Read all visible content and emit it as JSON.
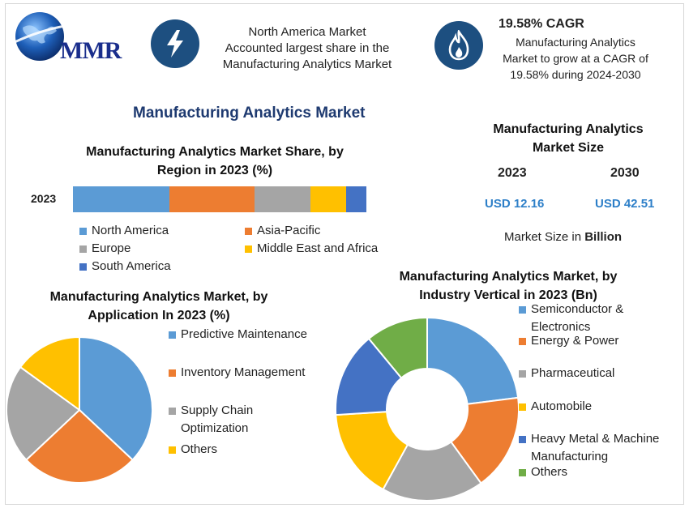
{
  "header": {
    "logo_text": "MMR",
    "box1_text_lines": [
      "North America Market",
      "Accounted largest share in the",
      "Manufacturing Analytics Market"
    ],
    "box2_title": "19.58% CAGR",
    "box2_text_lines": [
      "Manufacturing Analytics",
      "Market to grow at a CAGR of",
      "19.58% during 2024-2030"
    ]
  },
  "main_title": "Manufacturing Analytics Market",
  "market_size": {
    "title_lines": [
      "Manufacturing Analytics",
      "Market Size"
    ],
    "year1": "2023",
    "year2": "2030",
    "value1": "USD 12.16",
    "value2": "USD 42.51",
    "note_prefix": "Market Size in ",
    "note_bold": "Billion"
  },
  "colors": {
    "blue": "#5b9bd5",
    "orange": "#ed7d31",
    "gray": "#a5a5a5",
    "yellow": "#ffc000",
    "dark_blue": "#4472c4",
    "green": "#70ad47",
    "badge": "#1d4f80"
  },
  "chart_data": [
    {
      "type": "bar",
      "title_lines": [
        "Manufacturing Analytics Market Share, by",
        "Region in 2023 (%)"
      ],
      "categories": [
        "2023"
      ],
      "orientation": "horizontal-stacked",
      "series": [
        {
          "name": "North America",
          "values": [
            33
          ]
        },
        {
          "name": "Asia-Pacific",
          "values": [
            29
          ]
        },
        {
          "name": "Europe",
          "values": [
            19
          ]
        },
        {
          "name": "Middle East and Africa",
          "values": [
            12
          ]
        },
        {
          "name": "South America",
          "values": [
            7
          ]
        }
      ]
    },
    {
      "type": "pie",
      "title_lines": [
        "Manufacturing Analytics Market, by",
        "Application In 2023 (%)"
      ],
      "slices": [
        {
          "label_lines": [
            "Predictive Maintenance"
          ],
          "value": 37
        },
        {
          "label_lines": [
            "Inventory Management"
          ],
          "value": 26
        },
        {
          "label_lines": [
            "Supply Chain",
            "Optimization"
          ],
          "value": 22
        },
        {
          "label_lines": [
            "Others"
          ],
          "value": 15
        }
      ]
    },
    {
      "type": "pie",
      "subtype": "donut",
      "title_lines": [
        "Manufacturing Analytics Market, by",
        "Industry Vertical in 2023 (Bn)"
      ],
      "slices": [
        {
          "label_lines": [
            "Semiconductor &",
            "Electronics"
          ],
          "value": 23
        },
        {
          "label_lines": [
            "Energy & Power"
          ],
          "value": 17
        },
        {
          "label_lines": [
            "Pharmaceutical"
          ],
          "value": 18
        },
        {
          "label_lines": [
            "Automobile"
          ],
          "value": 16
        },
        {
          "label_lines": [
            "Heavy Metal & Machine",
            "Manufacturing"
          ],
          "value": 15
        },
        {
          "label_lines": [
            "Others"
          ],
          "value": 11
        }
      ]
    }
  ]
}
